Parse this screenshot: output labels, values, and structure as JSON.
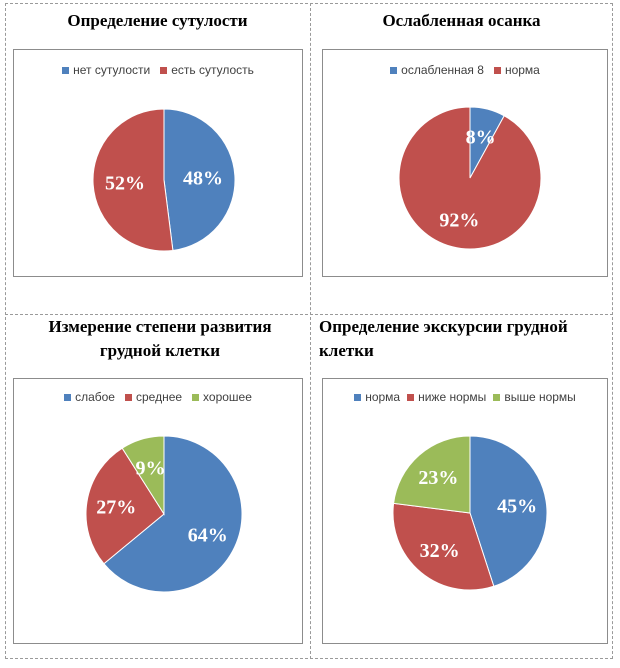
{
  "colors": {
    "blue": "#4f81bd",
    "red": "#c0504d",
    "green": "#9bbb59"
  },
  "chart_data": [
    {
      "type": "pie",
      "title": "Определение сутулости",
      "legend_position": "top",
      "slices": [
        {
          "name": "нет сутулости",
          "value": 48,
          "label": "48%",
          "color": "#4f81bd"
        },
        {
          "name": "есть сутулость",
          "value": 52,
          "label": "52%",
          "color": "#c0504d"
        }
      ]
    },
    {
      "type": "pie",
      "title": "Ослабленная осанка",
      "legend_position": "top",
      "slices": [
        {
          "name": "ослабленная 8",
          "value": 8,
          "label": "8%",
          "color": "#4f81bd"
        },
        {
          "name": "норма",
          "value": 92,
          "label": "92%",
          "color": "#c0504d"
        }
      ]
    },
    {
      "type": "pie",
      "title": "Измерение степени развития грудной клетки",
      "legend_position": "top",
      "slices": [
        {
          "name": "слабое",
          "value": 64,
          "label": "64%",
          "color": "#4f81bd"
        },
        {
          "name": "среднее",
          "value": 27,
          "label": "27%",
          "color": "#c0504d"
        },
        {
          "name": "хорошее",
          "value": 9,
          "label": "9%",
          "color": "#9bbb59"
        }
      ]
    },
    {
      "type": "pie",
      "title": "Определение экскурсии грудной клетки",
      "legend_position": "top",
      "slices": [
        {
          "name": "норма",
          "value": 45,
          "label": "45%",
          "color": "#4f81bd"
        },
        {
          "name": "ниже нормы",
          "value": 32,
          "label": "32%",
          "color": "#c0504d"
        },
        {
          "name": "выше нормы",
          "value": 23,
          "label": "23%",
          "color": "#9bbb59"
        }
      ]
    }
  ]
}
